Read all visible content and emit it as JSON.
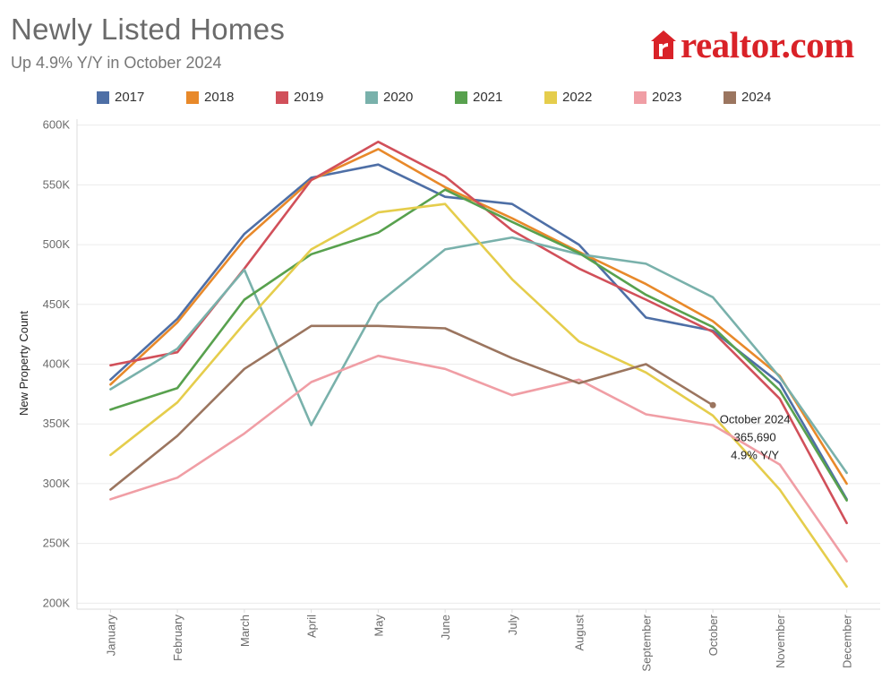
{
  "header": {
    "title": "Newly Listed Homes",
    "subtitle": "Up 4.9% Y/Y in October 2024"
  },
  "brand": {
    "logo_text": "realtor.com",
    "logo_icon": "house-r-icon",
    "color": "#d92228"
  },
  "chart_data": {
    "type": "line",
    "ylabel": "New Property Count",
    "xlabel": "",
    "ylim": [
      195000,
      605000
    ],
    "yticks": [
      200000,
      250000,
      300000,
      350000,
      400000,
      450000,
      500000,
      550000,
      600000
    ],
    "ytick_labels": [
      "200K",
      "250K",
      "300K",
      "350K",
      "400K",
      "450K",
      "500K",
      "550K",
      "600K"
    ],
    "categories": [
      "January",
      "February",
      "March",
      "April",
      "May",
      "June",
      "July",
      "August",
      "September",
      "October",
      "November",
      "December"
    ],
    "grid": "horizontal",
    "legend_position": "top",
    "series": [
      {
        "name": "2017",
        "color": "#4e6fa6",
        "values": [
          387000,
          438000,
          509000,
          556000,
          567000,
          540000,
          534000,
          500000,
          439000,
          428000,
          384000,
          287000
        ]
      },
      {
        "name": "2018",
        "color": "#e8892a",
        "values": [
          383000,
          435000,
          504000,
          554000,
          580000,
          548000,
          522000,
          494000,
          467000,
          436000,
          390000,
          300000
        ]
      },
      {
        "name": "2019",
        "color": "#d1505a",
        "values": [
          399000,
          410000,
          480000,
          554000,
          586000,
          557000,
          512000,
          480000,
          454000,
          427000,
          371000,
          267000
        ]
      },
      {
        "name": "2020",
        "color": "#79b1ab",
        "values": [
          379000,
          413000,
          479000,
          349000,
          451000,
          496000,
          506000,
          492000,
          484000,
          456000,
          389000,
          309000
        ]
      },
      {
        "name": "2021",
        "color": "#58a14e",
        "values": [
          362000,
          380000,
          454000,
          492000,
          510000,
          546000,
          519000,
          493000,
          458000,
          431000,
          378000,
          286000
        ]
      },
      {
        "name": "2022",
        "color": "#e5cd4c",
        "values": [
          324000,
          368000,
          434000,
          496000,
          527000,
          534000,
          471000,
          419000,
          393000,
          357000,
          295000,
          214000
        ]
      },
      {
        "name": "2023",
        "color": "#f09ea5",
        "values": [
          287000,
          305000,
          342000,
          385000,
          407000,
          396000,
          374000,
          387000,
          358000,
          349000,
          316000,
          235000
        ]
      },
      {
        "name": "2024",
        "color": "#9b755f",
        "values": [
          295000,
          340000,
          396000,
          432000,
          432000,
          430000,
          405000,
          384000,
          400000,
          365690,
          null,
          null
        ]
      }
    ],
    "annotation": {
      "month": "October",
      "lines": [
        "October 2024",
        "365,690",
        "4.9% Y/Y"
      ]
    }
  }
}
